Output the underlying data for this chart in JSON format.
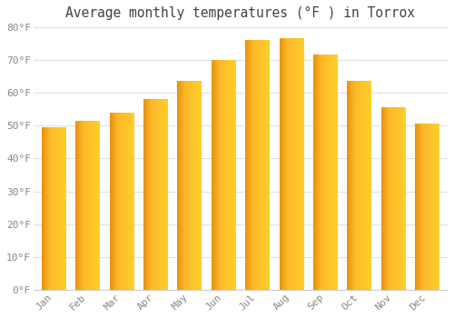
{
  "title": "Average monthly temperatures (°F ) in Torrox",
  "months": [
    "Jan",
    "Feb",
    "Mar",
    "Apr",
    "May",
    "Jun",
    "Jul",
    "Aug",
    "Sep",
    "Oct",
    "Nov",
    "Dec"
  ],
  "values": [
    49.5,
    51.5,
    54,
    58,
    63.5,
    70,
    76,
    76.5,
    71.5,
    63.5,
    55.5,
    50.5
  ],
  "bar_color_dark": "#E8920A",
  "bar_color_mid": "#FDB92A",
  "bar_color_light": "#FFCF2A",
  "background_color": "#FFFFFF",
  "grid_color": "#E0E0E0",
  "text_color": "#888888",
  "ylim": [
    0,
    80
  ],
  "yticks": [
    0,
    10,
    20,
    30,
    40,
    50,
    60,
    70,
    80
  ],
  "ytick_labels": [
    "0°F",
    "10°F",
    "20°F",
    "30°F",
    "40°F",
    "50°F",
    "60°F",
    "70°F",
    "80°F"
  ],
  "title_fontsize": 10.5,
  "tick_fontsize": 8,
  "font_family": "monospace",
  "bar_width": 0.72
}
